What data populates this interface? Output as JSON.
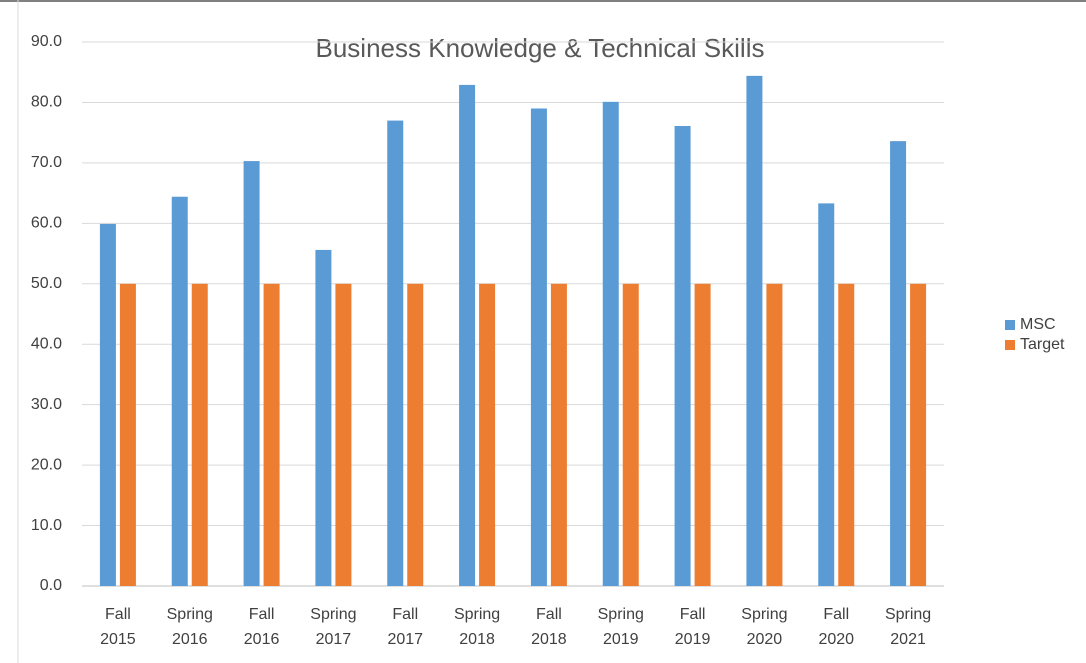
{
  "chart_data": {
    "type": "bar",
    "title": "Business Knowledge & Technical Skills",
    "categories": [
      "Fall 2015",
      "Spring 2016",
      "Fall 2016",
      "Spring 2017",
      "Fall 2017",
      "Spring 2018",
      "Fall 2018",
      "Spring 2019",
      "Fall 2019",
      "Spring 2020",
      "Fall 2020",
      "Spring 2021"
    ],
    "series": [
      {
        "name": "MSC",
        "color": "#5b9bd5",
        "values": [
          59.9,
          64.4,
          70.3,
          55.6,
          77.0,
          82.9,
          79.0,
          80.1,
          76.1,
          84.4,
          63.3,
          73.6
        ]
      },
      {
        "name": "Target",
        "color": "#ed7d31",
        "values": [
          50,
          50,
          50,
          50,
          50,
          50,
          50,
          50,
          50,
          50,
          50,
          50
        ]
      }
    ],
    "ylim": [
      0,
      90
    ],
    "yticks": [
      {
        "value": 0,
        "label": "0.0"
      },
      {
        "value": 10,
        "label": "10.0"
      },
      {
        "value": 20,
        "label": "20.0"
      },
      {
        "value": 30,
        "label": "30.0"
      },
      {
        "value": 40,
        "label": "40.0"
      },
      {
        "value": 50,
        "label": "50.0"
      },
      {
        "value": 60,
        "label": "60.0"
      },
      {
        "value": 70,
        "label": "70.0"
      },
      {
        "value": 80,
        "label": "80.0"
      },
      {
        "value": 90,
        "label": "90.0"
      }
    ],
    "grid": true,
    "legend": "right"
  }
}
